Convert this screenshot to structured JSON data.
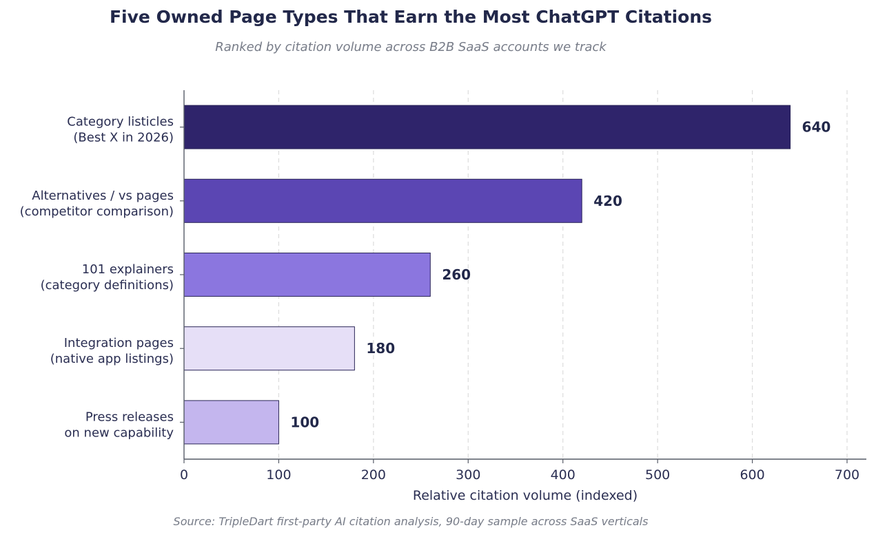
{
  "chart_data": {
    "type": "bar",
    "orientation": "horizontal",
    "title": "Five Owned Page Types That Earn the Most ChatGPT Citations",
    "subtitle": "Ranked by citation volume across B2B SaaS accounts we track",
    "xlabel": "Relative citation volume (indexed)",
    "ylabel": "",
    "xlim": [
      0,
      720
    ],
    "xticks": [
      "0",
      "100",
      "200",
      "300",
      "400",
      "500",
      "600",
      "700"
    ],
    "grid": "x-dashed",
    "categories": [
      {
        "line1": "Category listicles",
        "line2": "(Best X in 2026)"
      },
      {
        "line1": "Alternatives / vs pages",
        "line2": "(competitor comparison)"
      },
      {
        "line1": "101 explainers",
        "line2": "(category definitions)"
      },
      {
        "line1": "Integration pages",
        "line2": "(native app listings)"
      },
      {
        "line1": "Press releases",
        "line2": "on new capability"
      }
    ],
    "values": [
      640,
      420,
      260,
      180,
      100
    ],
    "value_labels": [
      "640",
      "420",
      "260",
      "180",
      "100"
    ],
    "colors": [
      "#2f246b",
      "#5b46b3",
      "#8b76df",
      "#e6dff7",
      "#c4b6ee"
    ],
    "source": "Source: TripleDart first-party AI citation analysis, 90-day sample across SaaS verticals"
  }
}
